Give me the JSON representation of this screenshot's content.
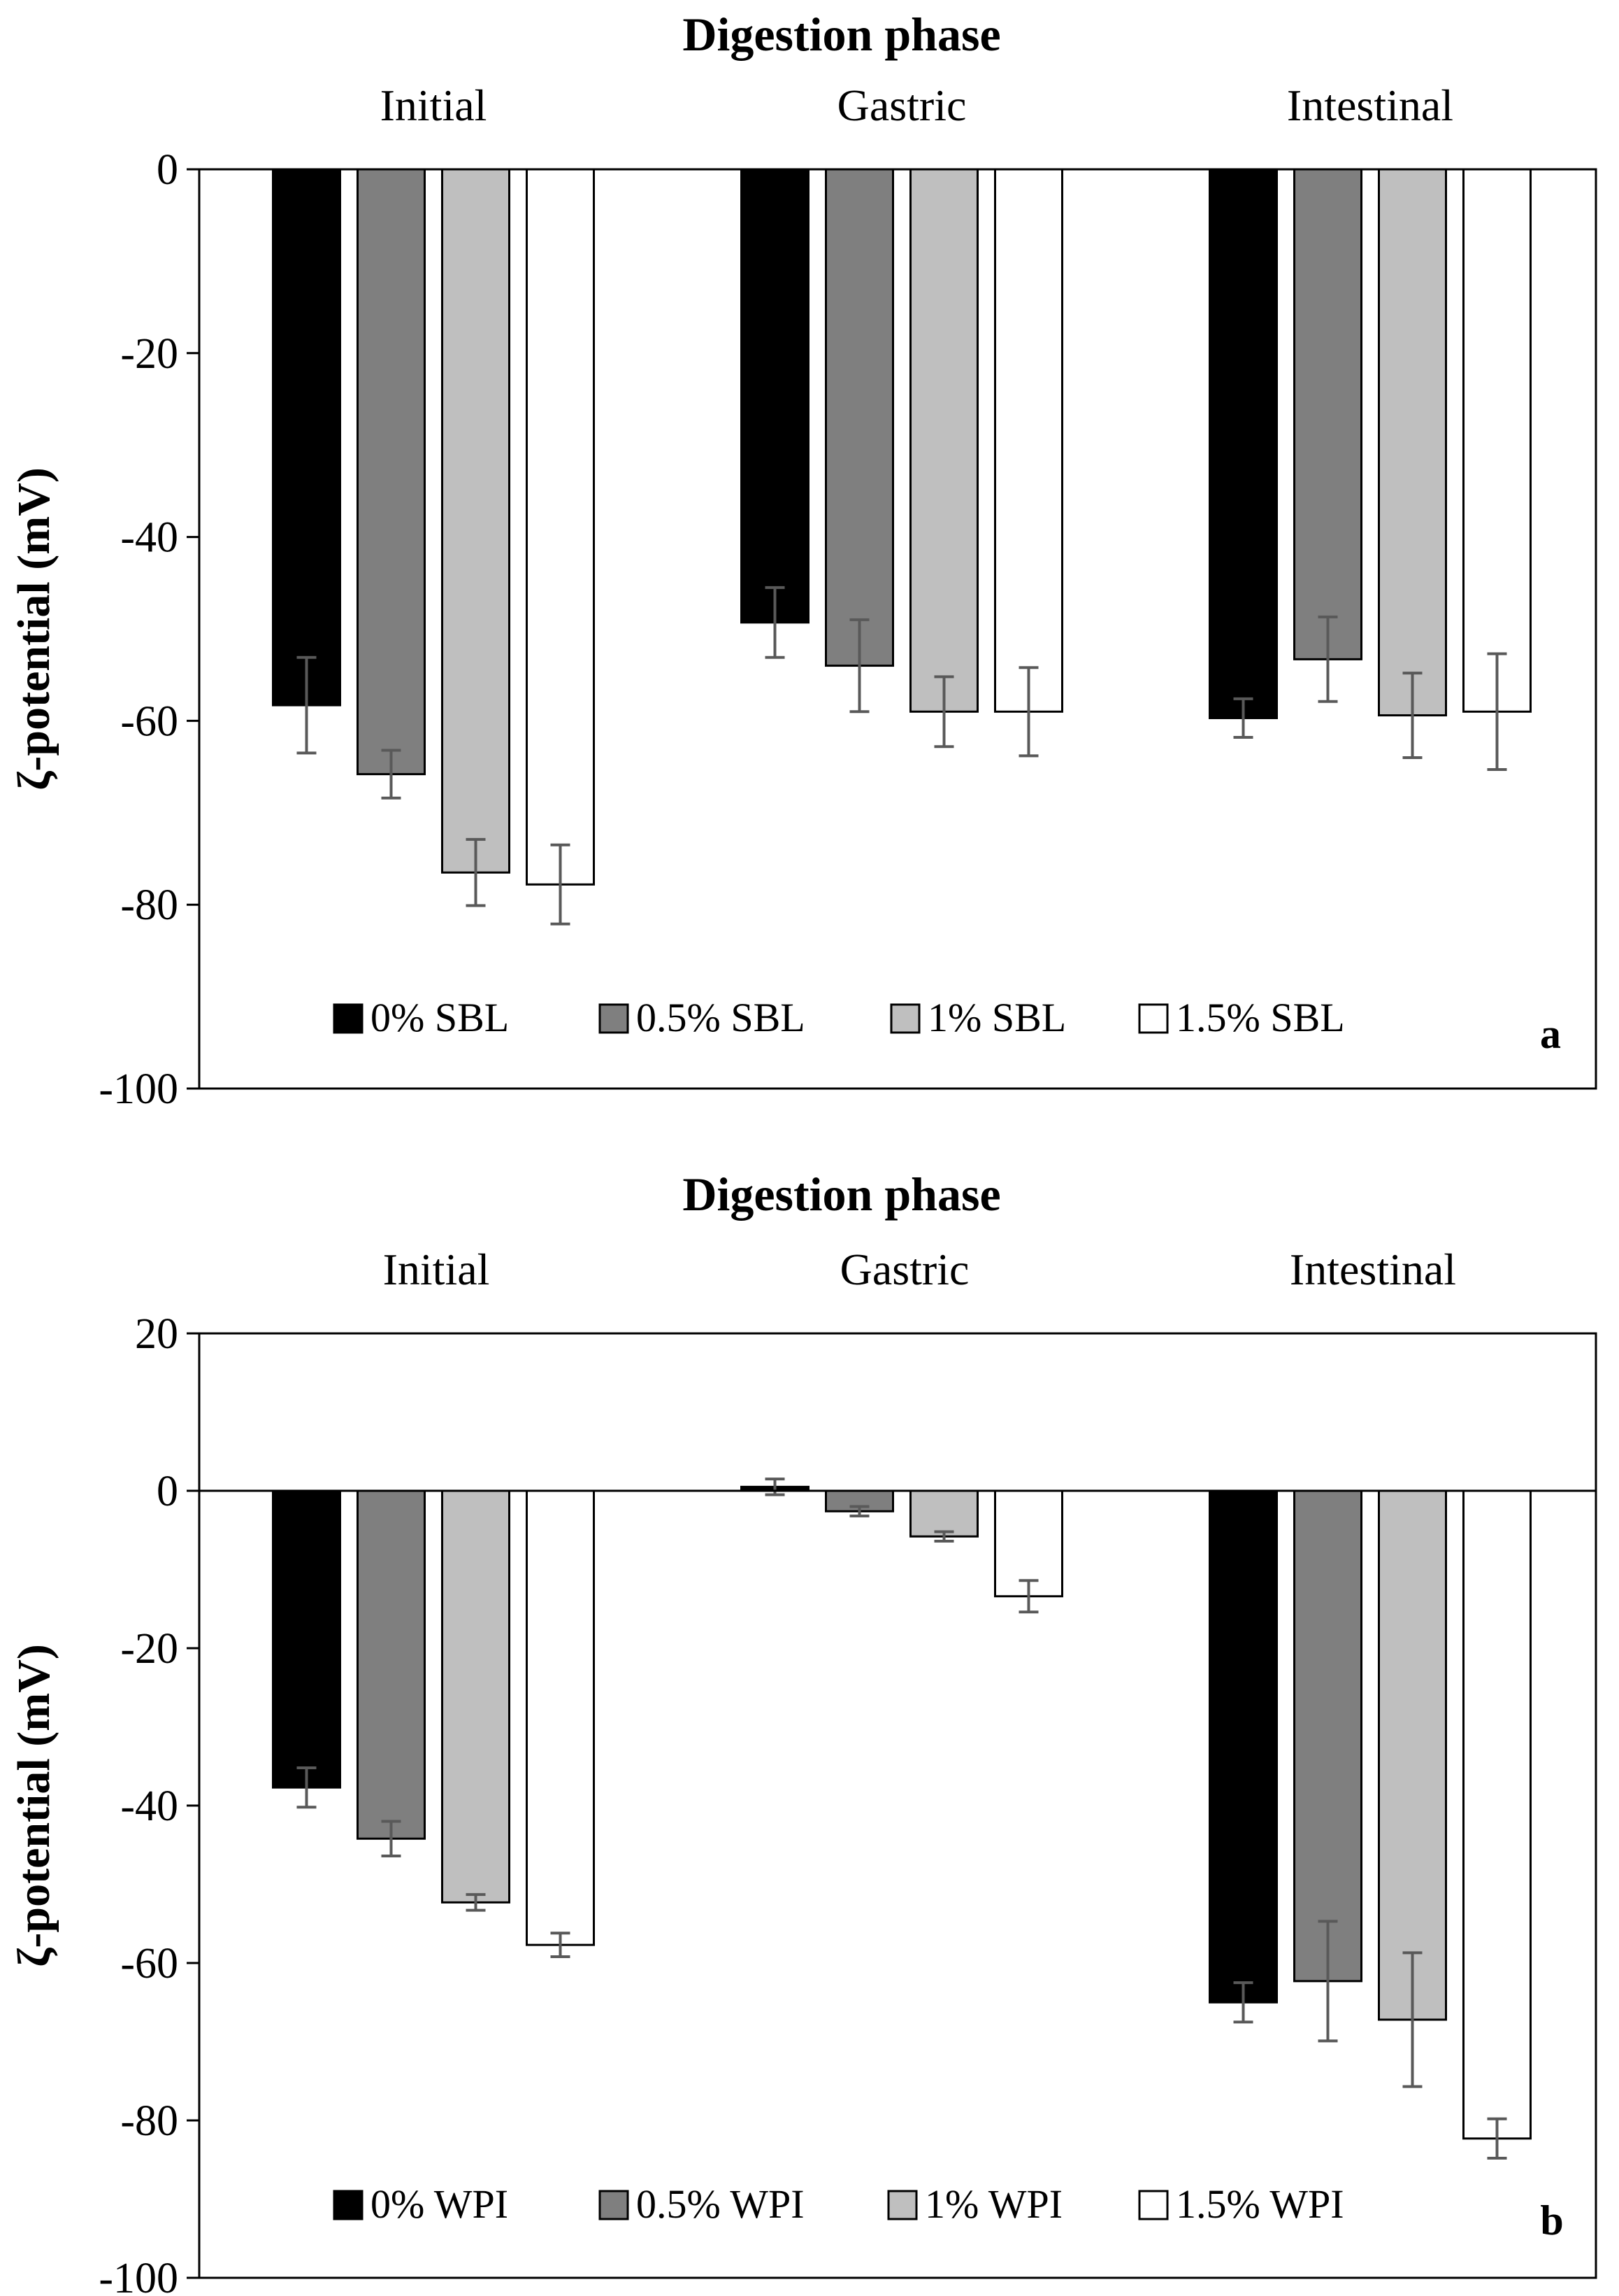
{
  "chart_data": [
    {
      "type": "bar",
      "title": "Digestion phase",
      "panel_label": "a",
      "ylabel": "ζ-potential (mV)",
      "ylim": [
        -100,
        0
      ],
      "yticks": [
        0,
        -20,
        -40,
        -60,
        -80,
        -100
      ],
      "categories": [
        "Initial",
        "Gastric",
        "Intestinal"
      ],
      "series": [
        {
          "name": "0% SBL",
          "color": "#000000",
          "values": [
            -58.3,
            -49.3,
            -59.7
          ],
          "errors": [
            5.2,
            3.8,
            2.1
          ]
        },
        {
          "name": "0.5% SBL",
          "color": "#7f7f7f",
          "values": [
            -65.8,
            -54.0,
            -53.3
          ],
          "errors": [
            2.6,
            5.0,
            4.6
          ]
        },
        {
          "name": "1% SBL",
          "color": "#bfbfbf",
          "values": [
            -76.5,
            -59.0,
            -59.4
          ],
          "errors": [
            3.6,
            3.8,
            4.6
          ]
        },
        {
          "name": "1.5% SBL",
          "color": "#ffffff",
          "values": [
            -77.8,
            -59.0,
            -59.0
          ],
          "errors": [
            4.3,
            4.8,
            6.3
          ]
        }
      ]
    },
    {
      "type": "bar",
      "title": "Digestion phase",
      "panel_label": "b",
      "ylabel": "ζ-potential (mV)",
      "ylim": [
        -100,
        20
      ],
      "yticks": [
        20,
        0,
        -20,
        -40,
        -60,
        -80,
        -100
      ],
      "categories": [
        "Initial",
        "Gastric",
        "Intestinal"
      ],
      "series": [
        {
          "name": "0% WPI",
          "color": "#000000",
          "values": [
            -37.7,
            0.5,
            -65.0
          ],
          "errors": [
            2.5,
            1.0,
            2.5
          ]
        },
        {
          "name": "0.5% WPI",
          "color": "#7f7f7f",
          "values": [
            -44.2,
            -2.6,
            -62.3
          ],
          "errors": [
            2.2,
            0.6,
            7.6
          ]
        },
        {
          "name": "1% WPI",
          "color": "#bfbfbf",
          "values": [
            -52.3,
            -5.8,
            -67.2
          ],
          "errors": [
            1.0,
            0.6,
            8.5
          ]
        },
        {
          "name": "1.5% WPI",
          "color": "#ffffff",
          "values": [
            -57.7,
            -13.4,
            -82.3
          ],
          "errors": [
            1.5,
            2.0,
            2.5
          ]
        }
      ]
    }
  ]
}
